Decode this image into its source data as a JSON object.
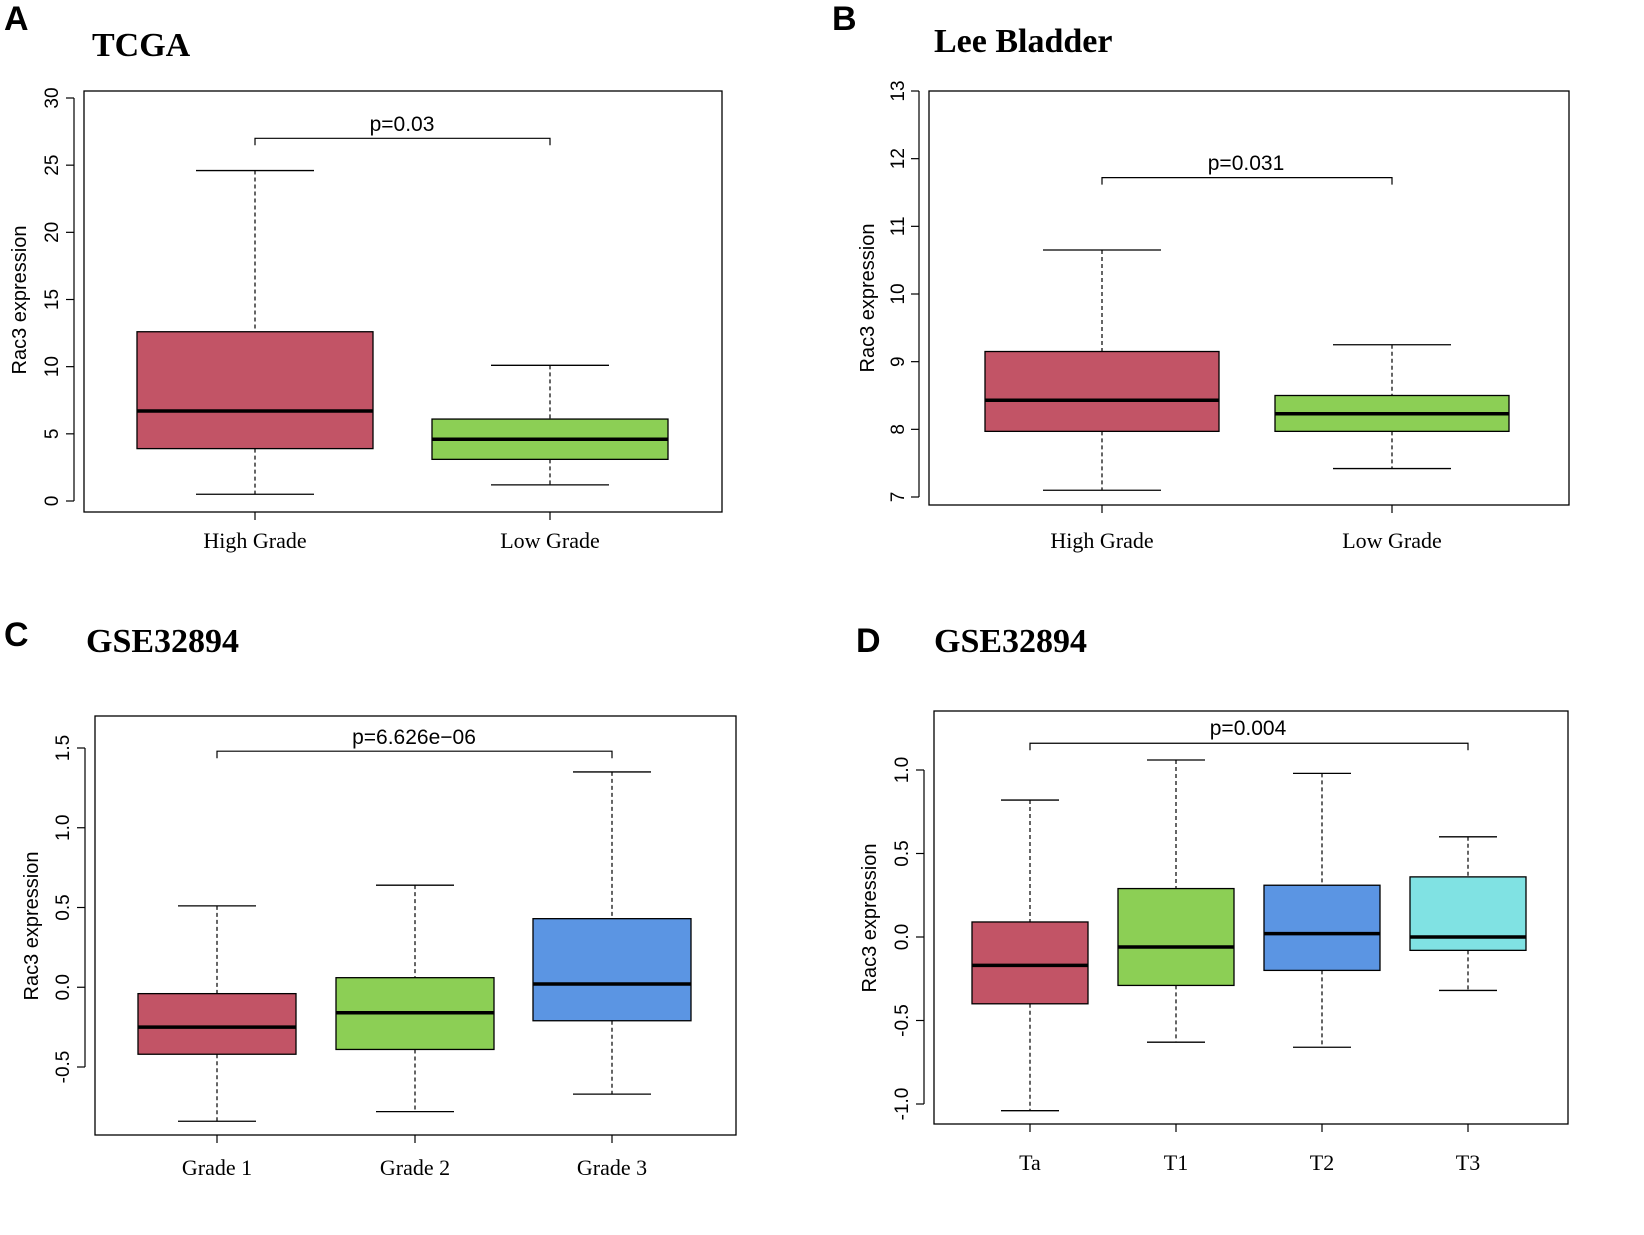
{
  "chart_data": [
    {
      "type": "box",
      "panel_label": "A",
      "title": "TCGA",
      "ylabel": "Rac3 expression",
      "ylim": [
        0,
        30
      ],
      "yticks": [
        "0",
        "5",
        "10",
        "15",
        "20",
        "25",
        "30"
      ],
      "yticks_values": [
        0,
        5,
        10,
        15,
        20,
        25,
        30
      ],
      "categories": [
        "High Grade",
        "Low Grade"
      ],
      "boxes": [
        {
          "category": "High Grade",
          "min": 0.5,
          "q1": 3.9,
          "median": 6.7,
          "q3": 12.6,
          "max": 24.6,
          "color": "#c25466"
        },
        {
          "category": "Low Grade",
          "min": 1.2,
          "q1": 3.1,
          "median": 4.6,
          "q3": 6.1,
          "max": 10.1,
          "color": "#8ccf55"
        }
      ],
      "pvalue": "p=0.03",
      "bracket_y": 27
    },
    {
      "type": "box",
      "panel_label": "B",
      "title": "Lee Bladder",
      "ylabel": "Rac3 expression",
      "ylim": [
        7,
        13
      ],
      "yticks": [
        "7",
        "8",
        "9",
        "10",
        "11",
        "12",
        "13"
      ],
      "yticks_values": [
        7,
        8,
        9,
        10,
        11,
        12,
        13
      ],
      "categories": [
        "High Grade",
        "Low Grade"
      ],
      "boxes": [
        {
          "category": "High Grade",
          "min": 7.1,
          "q1": 7.97,
          "median": 8.43,
          "q3": 9.15,
          "max": 10.65,
          "color": "#c25466"
        },
        {
          "category": "Low Grade",
          "min": 7.42,
          "q1": 7.97,
          "median": 8.23,
          "q3": 8.5,
          "max": 9.25,
          "color": "#8ccf55"
        }
      ],
      "pvalue": "p=0.031",
      "bracket_y": 11.72
    },
    {
      "type": "box",
      "panel_label": "C",
      "title": "GSE32894",
      "ylabel": "Rac3 expression",
      "ylim": [
        -0.85,
        1.5
      ],
      "yticks": [
        "-0.5",
        "0.0",
        "0.5",
        "1.0",
        "1.5"
      ],
      "yticks_values": [
        -0.5,
        0.0,
        0.5,
        1.0,
        1.5
      ],
      "categories": [
        "Grade 1",
        "Grade 2",
        "Grade 3"
      ],
      "boxes": [
        {
          "category": "Grade 1",
          "min": -0.84,
          "q1": -0.42,
          "median": -0.25,
          "q3": -0.04,
          "max": 0.51,
          "color": "#c25466"
        },
        {
          "category": "Grade 2",
          "min": -0.78,
          "q1": -0.39,
          "median": -0.16,
          "q3": 0.06,
          "max": 0.64,
          "color": "#8ccf55"
        },
        {
          "category": "Grade 3",
          "min": -0.67,
          "q1": -0.21,
          "median": 0.02,
          "q3": 0.43,
          "max": 1.35,
          "color": "#5b95e3"
        }
      ],
      "pvalue": "p=6.626e−06",
      "bracket_y": 1.48
    },
    {
      "type": "box",
      "panel_label": "D",
      "title": "GSE32894",
      "ylabel": "Rac3 expression",
      "ylim": [
        -1.05,
        1.2
      ],
      "yticks": [
        "-1.0",
        "-0.5",
        "0.0",
        "0.5",
        "1.0"
      ],
      "yticks_values": [
        -1.0,
        -0.5,
        0.0,
        0.5,
        1.0
      ],
      "categories": [
        "Ta",
        "T1",
        "T2",
        "T3"
      ],
      "boxes": [
        {
          "category": "Ta",
          "min": -1.04,
          "q1": -0.4,
          "median": -0.17,
          "q3": 0.09,
          "max": 0.82,
          "color": "#c25466"
        },
        {
          "category": "T1",
          "min": -0.63,
          "q1": -0.29,
          "median": -0.06,
          "q3": 0.29,
          "max": 1.06,
          "color": "#8ccf55"
        },
        {
          "category": "T2",
          "min": -0.66,
          "q1": -0.2,
          "median": 0.02,
          "q3": 0.31,
          "max": 0.98,
          "color": "#5b95e3"
        },
        {
          "category": "T3",
          "min": -0.32,
          "q1": -0.08,
          "median": 0.0,
          "q3": 0.36,
          "max": 0.6,
          "color": "#80e2e3"
        }
      ],
      "pvalue": "p=0.004",
      "bracket_y": 1.16
    }
  ]
}
